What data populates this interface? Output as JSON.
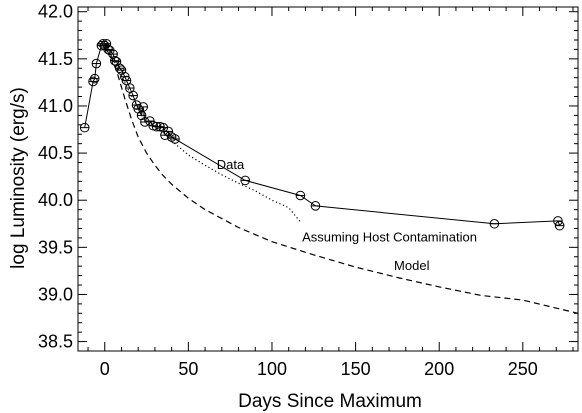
{
  "chart_data": {
    "type": "line",
    "title": "",
    "xlabel": "Days Since Maximum",
    "ylabel": "log Luminosity (erg/s)",
    "xlim": [
      -16,
      283
    ],
    "ylim": [
      38.4,
      42.05
    ],
    "xticks": [
      0,
      50,
      100,
      150,
      200,
      250
    ],
    "xtick_labels": [
      "0",
      "50",
      "100",
      "150",
      "200",
      "250"
    ],
    "yticks": [
      38.5,
      39.0,
      39.5,
      40.0,
      40.5,
      41.0,
      41.5,
      42.0
    ],
    "ytick_labels": [
      "38.5",
      "39.0",
      "39.5",
      "40.0",
      "40.5",
      "41.0",
      "41.5",
      "42.0"
    ],
    "grid": false,
    "legend": "none",
    "series": [
      {
        "name": "Data",
        "style": "solid line with open circle markers",
        "x": [
          -12,
          -7,
          -6,
          -5,
          -2,
          -1,
          0,
          1,
          2,
          3,
          5,
          6,
          7,
          9,
          10,
          12,
          13,
          15,
          17,
          19,
          20,
          22,
          23,
          24,
          27,
          29,
          31,
          33,
          35,
          36,
          38,
          40,
          42,
          84,
          117,
          126,
          233,
          271,
          272
        ],
        "y": [
          40.77,
          41.26,
          41.29,
          41.45,
          41.64,
          41.66,
          41.64,
          41.66,
          41.6,
          41.59,
          41.55,
          41.48,
          41.47,
          41.4,
          41.38,
          41.31,
          41.27,
          41.19,
          41.11,
          41.01,
          40.97,
          40.9,
          40.99,
          40.83,
          40.84,
          40.79,
          40.78,
          40.78,
          40.77,
          40.69,
          40.73,
          40.67,
          40.65,
          40.21,
          40.05,
          39.94,
          39.75,
          39.78,
          39.73
        ]
      },
      {
        "name": "Assuming Host Contamination",
        "style": "dotted line",
        "x": [
          0,
          5,
          10,
          15,
          20,
          25,
          30,
          35,
          40,
          50,
          60,
          70,
          80,
          90,
          100,
          110,
          117
        ],
        "y": [
          41.64,
          41.5,
          41.32,
          41.14,
          40.98,
          40.86,
          40.78,
          40.72,
          40.63,
          40.48,
          40.37,
          40.27,
          40.18,
          40.1,
          40.0,
          39.92,
          39.77
        ]
      },
      {
        "name": "Model",
        "style": "dashed line",
        "x": [
          0,
          4,
          8,
          12,
          16,
          20,
          25,
          30,
          35,
          40,
          50,
          60,
          80,
          100,
          125,
          150,
          175,
          200,
          225,
          250,
          283
        ],
        "y": [
          41.62,
          41.52,
          41.32,
          41.08,
          40.86,
          40.67,
          40.5,
          40.37,
          40.26,
          40.17,
          40.02,
          39.9,
          39.71,
          39.56,
          39.42,
          39.29,
          39.18,
          39.08,
          38.99,
          38.94,
          38.8
        ]
      }
    ],
    "annotations": [
      {
        "text": "Data",
        "x": 67,
        "y": 40.33
      },
      {
        "text": "Assuming Host Contamination",
        "x": 118,
        "y": 39.56
      },
      {
        "text": "Model",
        "x": 173,
        "y": 39.26
      }
    ]
  }
}
